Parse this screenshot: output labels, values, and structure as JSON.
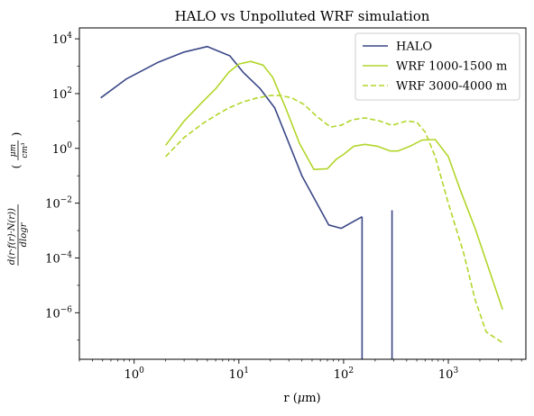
{
  "chart_data": {
    "type": "line",
    "title": "HALO vs Unpolluted WRF simulation",
    "xlabel": "r (μm)",
    "ylabel": "d(r·f(r)·N(r))/dlogr (μm/cm³)",
    "xscale": "log",
    "yscale": "log",
    "xlim": [
      0.3,
      5500
    ],
    "ylim": [
      2e-08,
      25000.0
    ],
    "grid": false,
    "legend": "top-right",
    "x_ticks": [
      {
        "value": 1,
        "base": "10",
        "exp": "0"
      },
      {
        "value": 10,
        "base": "10",
        "exp": "1"
      },
      {
        "value": 100,
        "base": "10",
        "exp": "2"
      },
      {
        "value": 1000,
        "base": "10",
        "exp": "3"
      }
    ],
    "y_ticks": [
      {
        "value": 1e-06,
        "base": "10",
        "exp": "−6"
      },
      {
        "value": 0.0001,
        "base": "10",
        "exp": "−4"
      },
      {
        "value": 0.01,
        "base": "10",
        "exp": "−2"
      },
      {
        "value": 1,
        "base": "10",
        "exp": "0"
      },
      {
        "value": 100,
        "base": "10",
        "exp": "2"
      },
      {
        "value": 10000,
        "base": "10",
        "exp": "4"
      }
    ],
    "series": [
      {
        "name": "HALO",
        "color": "#3a4786",
        "dash": "solid",
        "segments": [
          {
            "x": [
              0.48,
              0.85,
              1.7,
              3.0,
              5.0,
              8.2,
              11,
              16,
              22,
              40,
              72,
              95,
              150
            ],
            "y": [
              70,
              350,
              1400,
              3300,
              5200,
              2400,
              600,
              150,
              30,
              0.1,
              0.0016,
              0.0012,
              0.0032
            ]
          },
          {
            "x": [
              150,
              150
            ],
            "y": [
              0.0032,
              1e-08
            ]
          },
          {
            "x": [
              290,
              290
            ],
            "y": [
              1e-08,
              0.0055
            ]
          }
        ]
      },
      {
        "name": "WRF 1000-1500 m",
        "color": "#b2d62a",
        "dash": "solid",
        "segments": [
          {
            "x": [
              2.0,
              3.0,
              4.5,
              6.0,
              8.0,
              10,
              13,
              17,
              21,
              28,
              38,
              52,
              70,
              85,
              100,
              125,
              160,
              210,
              280,
              330,
              430,
              560,
              750,
              1000,
              1300,
              1800,
              2500,
              3300
            ],
            "y": [
              1.3,
              10,
              50,
              150,
              600,
              1200,
              1500,
              1100,
              400,
              30,
              1.5,
              0.17,
              0.18,
              0.4,
              0.6,
              1.2,
              1.4,
              1.2,
              0.8,
              0.8,
              1.2,
              2.0,
              2.1,
              0.5,
              0.03,
              0.0012,
              3e-05,
              1.3e-06
            ]
          }
        ]
      },
      {
        "name": "WRF 3000-4000 m",
        "color": "#b2d62a",
        "dash": "dashed",
        "segments": [
          {
            "x": [
              2.0,
              3.0,
              4.5,
              6.0,
              8.0,
              11,
              15,
              20,
              25,
              32,
              42,
              55,
              75,
              95,
              120,
              160,
              220,
              290,
              400,
              500,
              600,
              750,
              1000,
              1400,
              1800,
              2300,
              3300
            ],
            "y": [
              0.5,
              2.5,
              8,
              16,
              30,
              50,
              70,
              85,
              85,
              70,
              40,
              15,
              6,
              7,
              11,
              13,
              10,
              7,
              10,
              9,
              4,
              0.5,
              0.01,
              0.00015,
              3e-06,
              2e-07,
              8e-08
            ]
          }
        ]
      }
    ]
  }
}
